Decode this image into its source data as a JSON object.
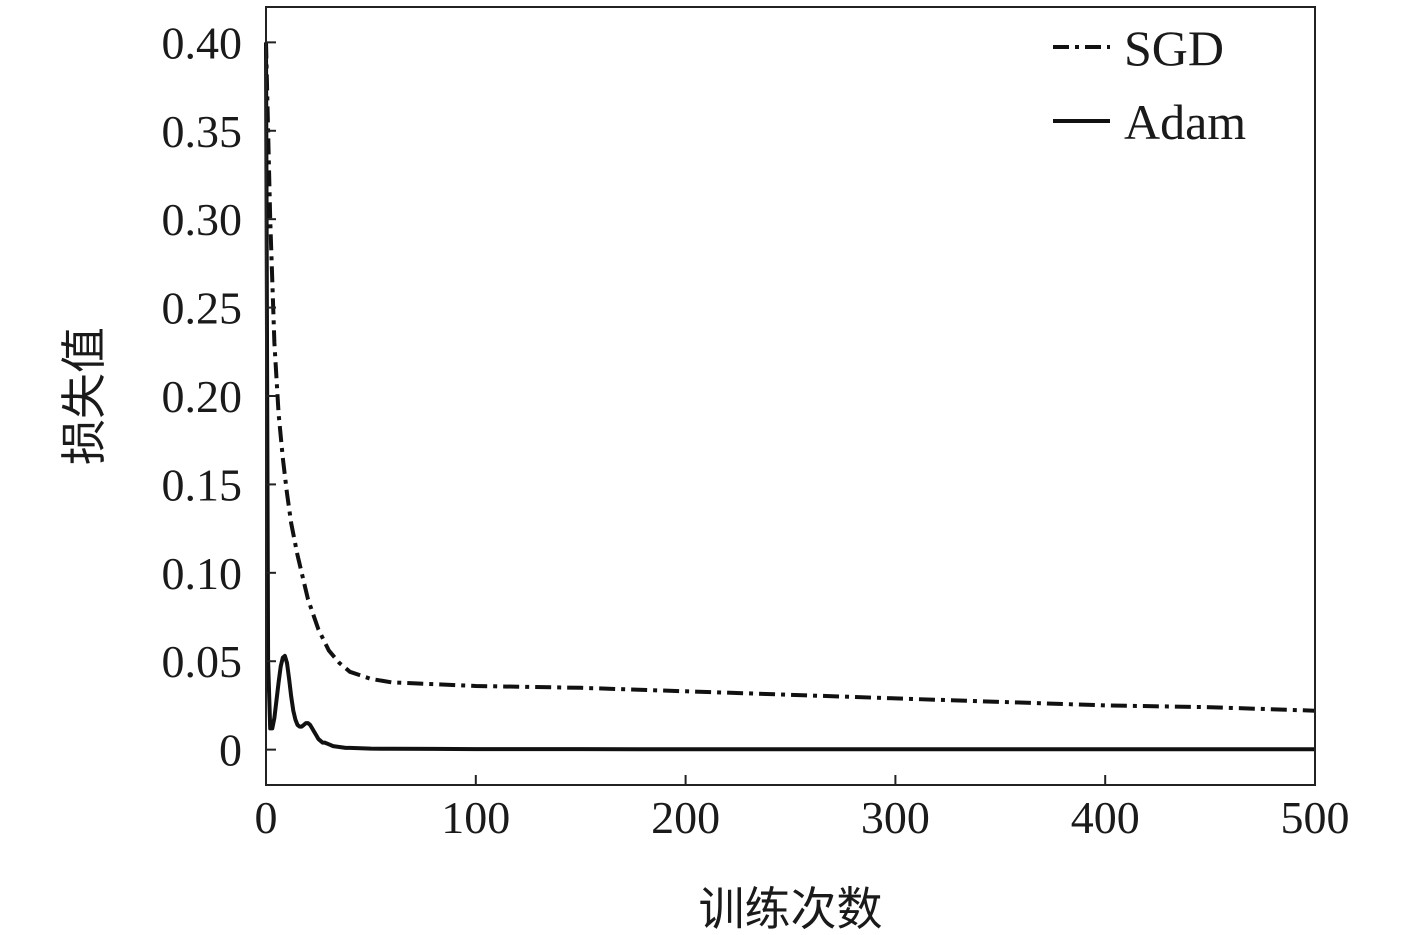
{
  "chart_data": {
    "type": "line",
    "title": "",
    "xlabel": "训练次数",
    "ylabel": "损失值",
    "xlim": [
      0,
      500
    ],
    "ylim": [
      -0.02,
      0.42
    ],
    "x_ticks": [
      0,
      100,
      200,
      300,
      400,
      500
    ],
    "x_tick_labels": [
      "0",
      "100",
      "200",
      "300",
      "400",
      "500"
    ],
    "y_ticks": [
      0,
      0.05,
      0.1,
      0.15,
      0.2,
      0.25,
      0.3,
      0.35,
      0.4
    ],
    "y_tick_labels": [
      "0",
      "0.05",
      "0.10",
      "0.15",
      "0.20",
      "0.25",
      "0.30",
      "0.35",
      "0.40"
    ],
    "grid": false,
    "legend": {
      "position": "top-right"
    },
    "colors": {
      "line": "#111111",
      "axis": "#222222"
    },
    "series": [
      {
        "name": "SGD",
        "style": "dash-dot",
        "x": [
          0,
          2,
          4,
          6,
          8,
          10,
          12,
          15,
          18,
          20,
          25,
          30,
          35,
          40,
          50,
          60,
          80,
          100,
          150,
          200,
          250,
          300,
          350,
          400,
          450,
          500
        ],
        "y": [
          0.4,
          0.3,
          0.23,
          0.19,
          0.165,
          0.145,
          0.128,
          0.11,
          0.095,
          0.085,
          0.068,
          0.056,
          0.049,
          0.044,
          0.04,
          0.038,
          0.037,
          0.036,
          0.035,
          0.033,
          0.031,
          0.029,
          0.027,
          0.025,
          0.024,
          0.022
        ]
      },
      {
        "name": "Adam",
        "style": "solid",
        "x": [
          0,
          1,
          2,
          3,
          4,
          5,
          6,
          7,
          8,
          9,
          10,
          11,
          12,
          13,
          14,
          15,
          16,
          17,
          18,
          19,
          20,
          21,
          22,
          23,
          24,
          25,
          26,
          27,
          28,
          30,
          32,
          35,
          38,
          40,
          45,
          50,
          60,
          80,
          100,
          150,
          200,
          300,
          400,
          500
        ],
        "y": [
          0.4,
          0.05,
          0.012,
          0.012,
          0.018,
          0.028,
          0.038,
          0.047,
          0.052,
          0.053,
          0.049,
          0.04,
          0.03,
          0.022,
          0.017,
          0.014,
          0.013,
          0.013,
          0.014,
          0.015,
          0.015,
          0.014,
          0.012,
          0.01,
          0.008,
          0.006,
          0.005,
          0.004,
          0.004,
          0.003,
          0.002,
          0.0015,
          0.001,
          0.001,
          0.0008,
          0.0006,
          0.0005,
          0.0004,
          0.0003,
          0.0003,
          0.0002,
          0.0002,
          0.0002,
          0.0002
        ]
      }
    ]
  }
}
